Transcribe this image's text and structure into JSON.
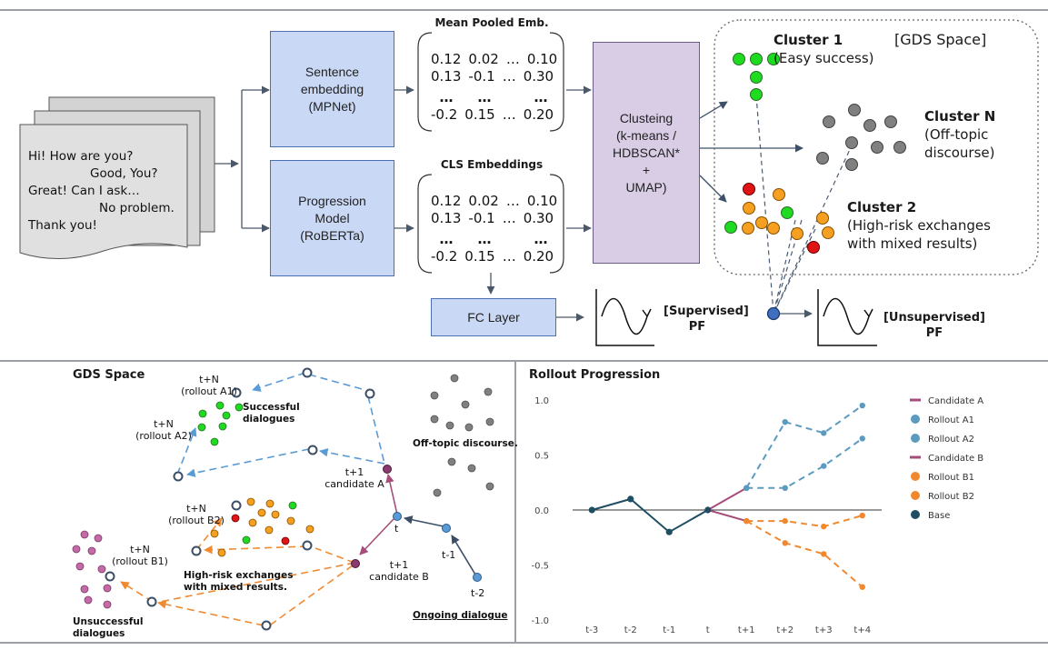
{
  "top": {
    "dialogue_lines": [
      "Hi! How are you?",
      "Good, You?",
      "Great! Can I ask…",
      "No problem.",
      "Thank you!"
    ],
    "sentence_embedding": {
      "line1": "Sentence",
      "line2": "embedding",
      "line3": "(MPNet)"
    },
    "progression_model": {
      "line1": "Progression",
      "line2": "Model",
      "line3": "(RoBERTa)"
    },
    "mean_pooled_title": "Mean Pooled Emb.",
    "cls_title": "CLS Embeddings",
    "matrix_rows": [
      [
        "0.12",
        "0.02",
        "…",
        "0.10"
      ],
      [
        "0.13",
        "-0.1",
        "…",
        "0.30"
      ],
      [
        "…",
        "…",
        "",
        "…"
      ],
      [
        "-0.2",
        "0.15",
        "…",
        "0.20"
      ]
    ],
    "clustering": {
      "line1": "Clusteing",
      "line2": "(k-means /",
      "line3": "HDBSCAN*",
      "line4": "+",
      "line5": "UMAP)"
    },
    "fc_layer": "FC Layer",
    "supervised_pf": {
      "line1": "[Supervised]",
      "line2": "PF"
    },
    "unsupervised_pf": {
      "line1": "[Unsupervised]",
      "line2": "PF"
    },
    "gds_space": "[GDS Space]",
    "cluster1": {
      "title": "Cluster 1",
      "desc": "(Easy success)"
    },
    "clusterN": {
      "title": "Cluster N",
      "desc1": "(Off-topic",
      "desc2": "discourse)"
    },
    "cluster2": {
      "title": "Cluster 2",
      "desc1": "(High-risk exchanges",
      "desc2": "with mixed results)"
    }
  },
  "bottom_left": {
    "title": "GDS Space",
    "rollout_a1": {
      "l1": "t+N",
      "l2": "(rollout A1)"
    },
    "rollout_a2": {
      "l1": "t+N",
      "l2": "(rollout A2)"
    },
    "rollout_b2": {
      "l1": "t+N",
      "l2": "(rollout B2)"
    },
    "rollout_b1": {
      "l1": "t+N",
      "l2": "(rollout B1)"
    },
    "successful": {
      "l1": "Successful",
      "l2": "dialogues"
    },
    "offtopic": "Off-topic discourse.",
    "highrisk": {
      "l1": "High-risk exchanges",
      "l2": "with mixed results."
    },
    "unsuccessful": {
      "l1": "Unsuccessful",
      "l2": "dialogues"
    },
    "candidate_a": {
      "l1": "t+1",
      "l2": "candidate A"
    },
    "candidate_b": {
      "l1": "t+1",
      "l2": "candidate B"
    },
    "t": "t",
    "t_minus_1": "t-1",
    "t_minus_2": "t-2",
    "ongoing": "Ongoing dialogue"
  },
  "chart_data": {
    "type": "line",
    "title": "Rollout Progression",
    "categories": [
      "t-3",
      "t-2",
      "t-1",
      "t",
      "t+1",
      "t+2",
      "t+3",
      "t+4"
    ],
    "ylim": [
      -1.0,
      1.0
    ],
    "yticks": [
      "1.0",
      "0.5",
      "0.0",
      "-0.5",
      "-1.0"
    ],
    "series": [
      {
        "name": "Candidate A",
        "color": "#a64d79",
        "style": "solid",
        "values": [
          null,
          null,
          null,
          0.0,
          0.2,
          null,
          null,
          null
        ]
      },
      {
        "name": "Rollout A1",
        "color": "#5b9bbf",
        "style": "dashed",
        "values": [
          null,
          null,
          null,
          null,
          0.2,
          0.8,
          0.7,
          0.95
        ]
      },
      {
        "name": "Rollout A2",
        "color": "#5b9bbf",
        "style": "dashed",
        "values": [
          null,
          null,
          null,
          null,
          0.2,
          0.2,
          0.4,
          0.65
        ]
      },
      {
        "name": "Candidate B",
        "color": "#a64d79",
        "style": "solid",
        "values": [
          null,
          null,
          null,
          0.0,
          -0.1,
          null,
          null,
          null
        ]
      },
      {
        "name": "Rollout B1",
        "color": "#f2882e",
        "style": "dashed",
        "values": [
          null,
          null,
          null,
          null,
          -0.1,
          -0.1,
          -0.15,
          -0.05
        ]
      },
      {
        "name": "Rollout B2",
        "color": "#f2882e",
        "style": "dashed",
        "values": [
          null,
          null,
          null,
          null,
          -0.1,
          -0.3,
          -0.4,
          -0.7
        ]
      },
      {
        "name": "Base",
        "color": "#1f4e63",
        "style": "solid",
        "values": [
          0.0,
          0.1,
          -0.2,
          0.0,
          null,
          null,
          null,
          null
        ]
      }
    ]
  }
}
